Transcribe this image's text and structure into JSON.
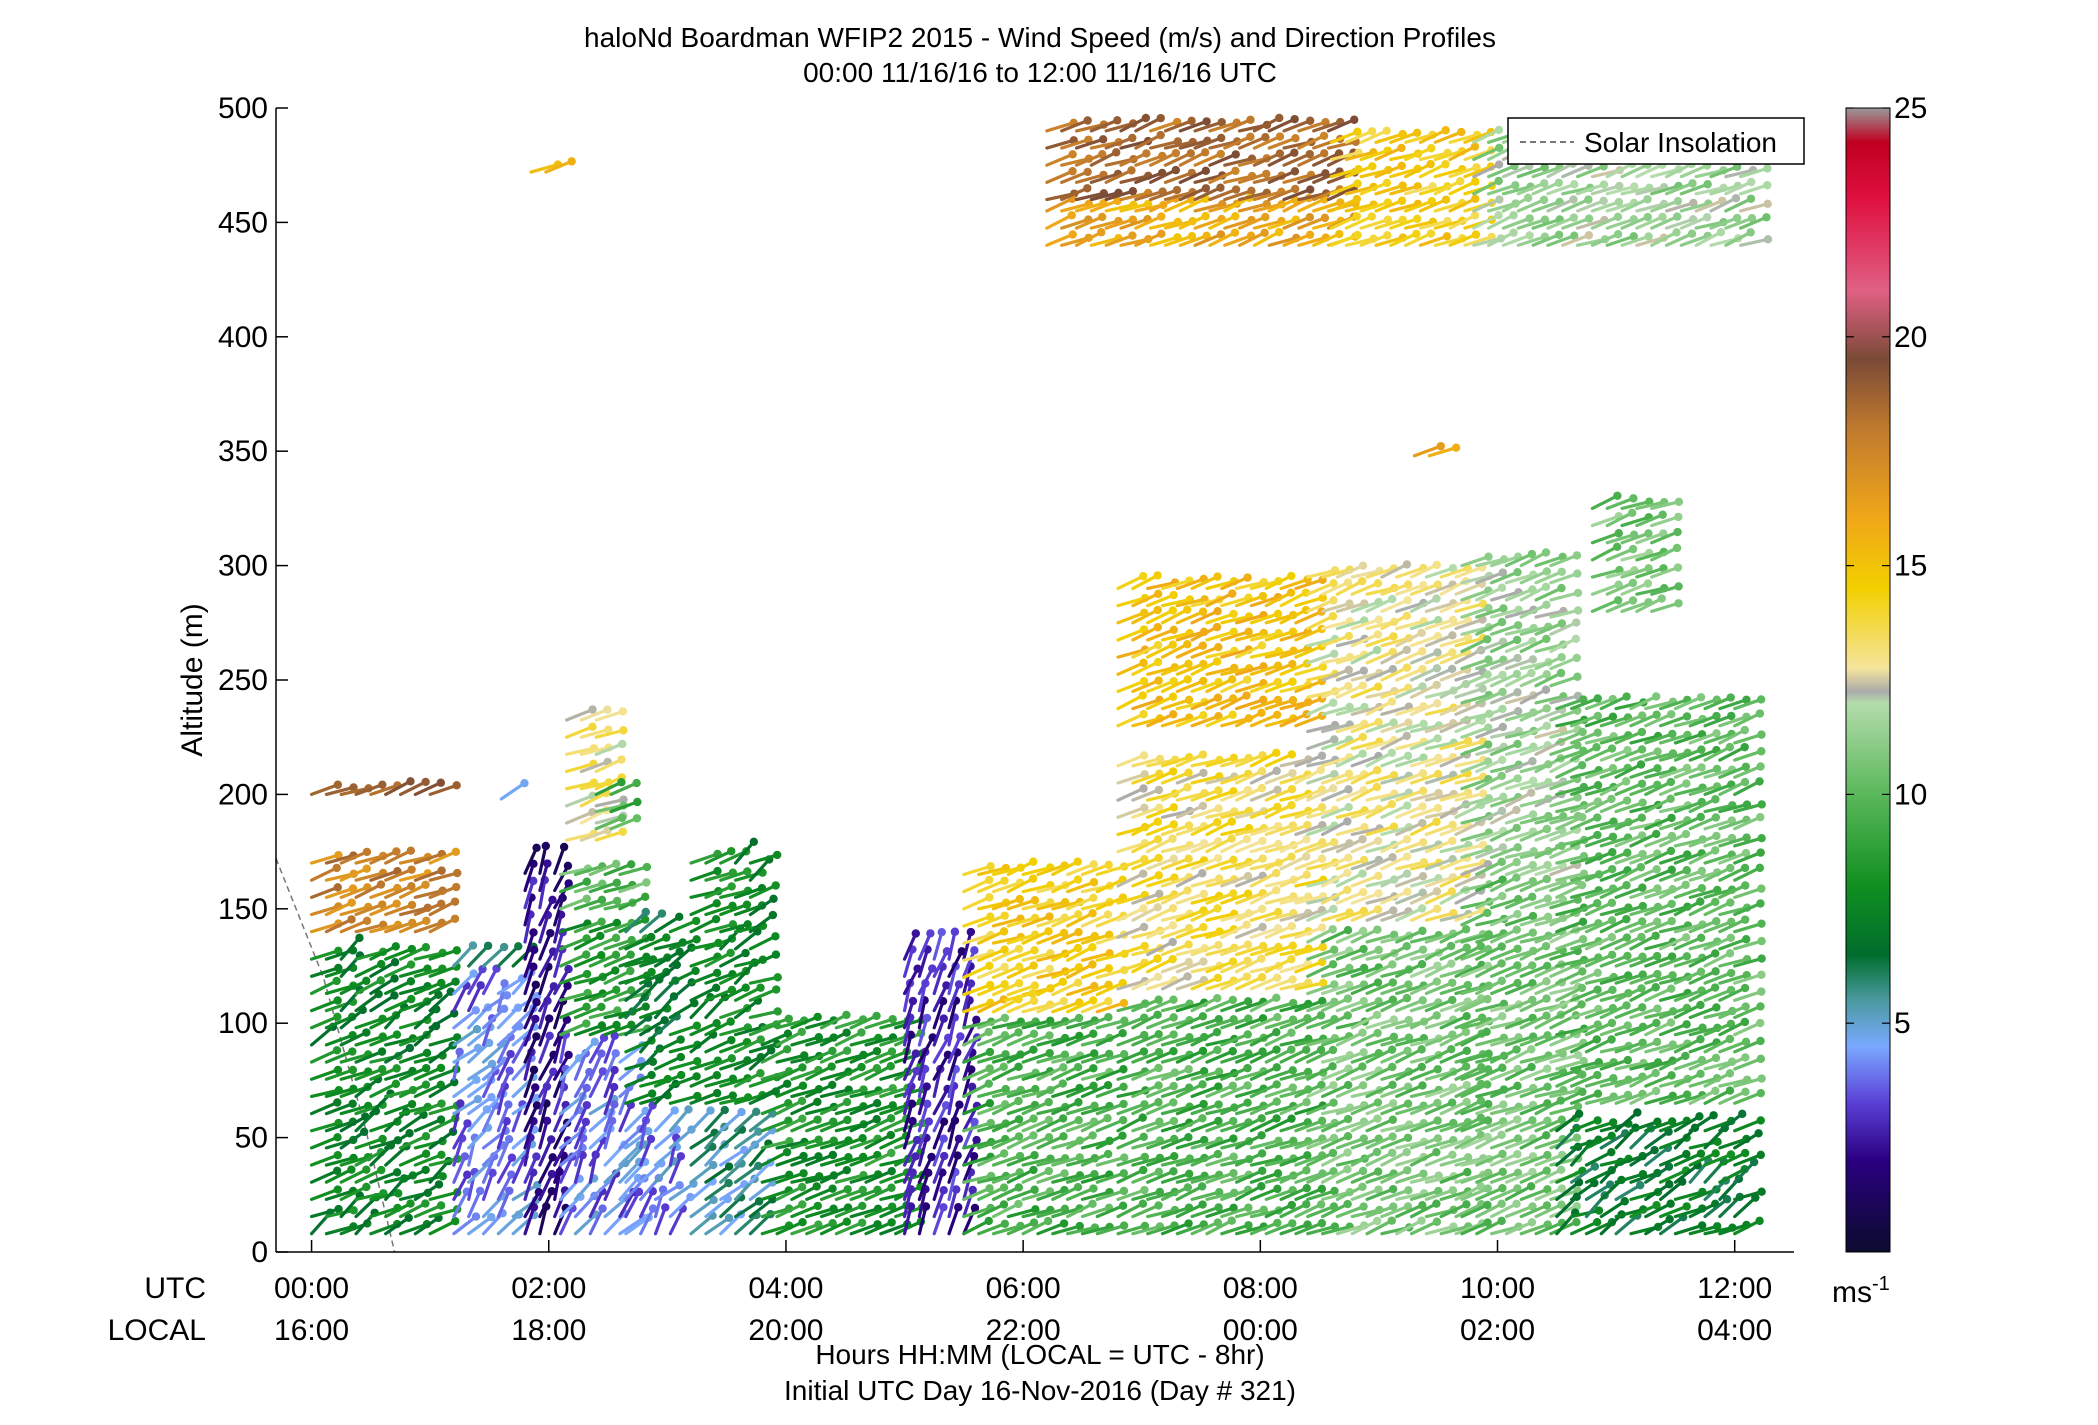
{
  "chart_data": {
    "type": "wind-barb-profile",
    "title_line1": "haloNd Boardman WFIP2 2015 - Wind Speed (m/s) and Direction Profiles",
    "title_line2": "00:00 11/16/16 to 12:00 11/16/16  UTC",
    "ylabel": "Altitude (m)",
    "ylim": [
      0,
      500
    ],
    "yticks": [
      "0",
      "50",
      "100",
      "150",
      "200",
      "250",
      "300",
      "350",
      "400",
      "450",
      "500"
    ],
    "xlim_hours": [
      -0.3,
      12.5
    ],
    "utc_row_label": "UTC",
    "local_row_label": "LOCAL",
    "utc_ticks": [
      {
        "h": 0,
        "label": "00:00"
      },
      {
        "h": 2,
        "label": "02:00"
      },
      {
        "h": 4,
        "label": "04:00"
      },
      {
        "h": 6,
        "label": "06:00"
      },
      {
        "h": 8,
        "label": "08:00"
      },
      {
        "h": 10,
        "label": "10:00"
      },
      {
        "h": 12,
        "label": "12:00"
      }
    ],
    "local_ticks": [
      "16:00",
      "18:00",
      "20:00",
      "22:00",
      "00:00",
      "02:00",
      "04:00"
    ],
    "xlabel": "Hours HH:MM  (LOCAL = UTC - 8hr)",
    "xlabel2": "Initial UTC Day 16-Nov-2016 (Day # 321)",
    "legend": [
      {
        "name": "Solar Insolation",
        "style": "dashed",
        "color": "#777777"
      }
    ],
    "colorbar": {
      "range": [
        0,
        25
      ],
      "ticks": [
        "5",
        "10",
        "15",
        "20",
        "25"
      ],
      "unit": "ms",
      "unit_exp": "-1"
    },
    "solar_insolation": [
      [
        -0.3,
        172
      ],
      [
        0.1,
        120
      ],
      [
        0.45,
        55
      ],
      [
        0.7,
        0
      ]
    ],
    "segments": [
      {
        "t0": 0.0,
        "t1": 1.1,
        "levels": [
          [
            8,
            130,
            7.5
          ],
          [
            140,
            172,
            17.5
          ],
          [
            200,
            203,
            18.5
          ]
        ]
      },
      {
        "t0": 1.2,
        "t1": 1.7,
        "levels": [
          [
            8,
            115,
            4
          ],
          [
            125,
            132,
            6
          ]
        ]
      },
      {
        "t0": 1.6,
        "t1": 1.7,
        "levels": [
          [
            198,
            204,
            4.5
          ]
        ]
      },
      {
        "t0": 1.8,
        "t1": 2.1,
        "levels": [
          [
            8,
            172,
            2
          ]
        ]
      },
      {
        "t0": 1.85,
        "t1": 2.0,
        "levels": [
          [
            472,
            476,
            16
          ]
        ]
      },
      {
        "t0": 2.1,
        "t1": 2.6,
        "levels": [
          [
            8,
            90,
            4
          ],
          [
            95,
            145,
            8.5
          ],
          [
            150,
            172,
            10
          ]
        ]
      },
      {
        "t0": 2.15,
        "t1": 2.4,
        "levels": [
          [
            180,
            235,
            13
          ]
        ]
      },
      {
        "t0": 2.4,
        "t1": 2.6,
        "levels": [
          [
            185,
            205,
            9.5
          ]
        ]
      },
      {
        "t0": 2.65,
        "t1": 3.1,
        "levels": [
          [
            8,
            60,
            4.2
          ],
          [
            65,
            145,
            7
          ]
        ]
      },
      {
        "t0": 3.2,
        "t1": 3.7,
        "levels": [
          [
            8,
            60,
            5.5
          ],
          [
            65,
            172,
            7.8
          ]
        ]
      },
      {
        "t0": 3.8,
        "t1": 5.0,
        "levels": [
          [
            8,
            98,
            8.2
          ]
        ]
      },
      {
        "t0": 5.0,
        "t1": 5.5,
        "levels": [
          [
            8,
            132,
            2.5
          ]
        ]
      },
      {
        "t0": 5.5,
        "t1": 6.7,
        "levels": [
          [
            8,
            100,
            9.5
          ],
          [
            105,
            172,
            14.5
          ]
        ]
      },
      {
        "t0": 6.8,
        "t1": 8.4,
        "levels": [
          [
            8,
            110,
            9.5
          ],
          [
            115,
            215,
            13.5
          ],
          [
            230,
            292,
            15
          ]
        ]
      },
      {
        "t0": 8.4,
        "t1": 9.7,
        "levels": [
          [
            8,
            140,
            10.5
          ],
          [
            145,
            300,
            12.8
          ]
        ]
      },
      {
        "t0": 9.7,
        "t1": 10.5,
        "levels": [
          [
            8,
            160,
            10.5
          ],
          [
            165,
            305,
            11.5
          ]
        ]
      },
      {
        "t0": 10.5,
        "t1": 12.1,
        "levels": [
          [
            8,
            60,
            7
          ],
          [
            65,
            240,
            10
          ]
        ]
      },
      {
        "t0": 10.8,
        "t1": 11.3,
        "levels": [
          [
            280,
            326,
            10.5
          ]
        ]
      },
      {
        "t0": 6.2,
        "t1": 8.6,
        "levels": [
          [
            460,
            490,
            18.5
          ],
          [
            440,
            455,
            16
          ]
        ]
      },
      {
        "t0": 8.6,
        "t1": 9.8,
        "levels": [
          [
            440,
            490,
            14.5
          ]
        ]
      },
      {
        "t0": 9.8,
        "t1": 12.1,
        "levels": [
          [
            440,
            490,
            11.5
          ]
        ]
      },
      {
        "t0": 9.3,
        "t1": 9.5,
        "levels": [
          [
            348,
            352,
            15.5
          ]
        ]
      },
      {
        "t0": 5.85,
        "t1": 5.95,
        "levels": [
          [
            110,
            115,
            15
          ]
        ]
      }
    ]
  }
}
